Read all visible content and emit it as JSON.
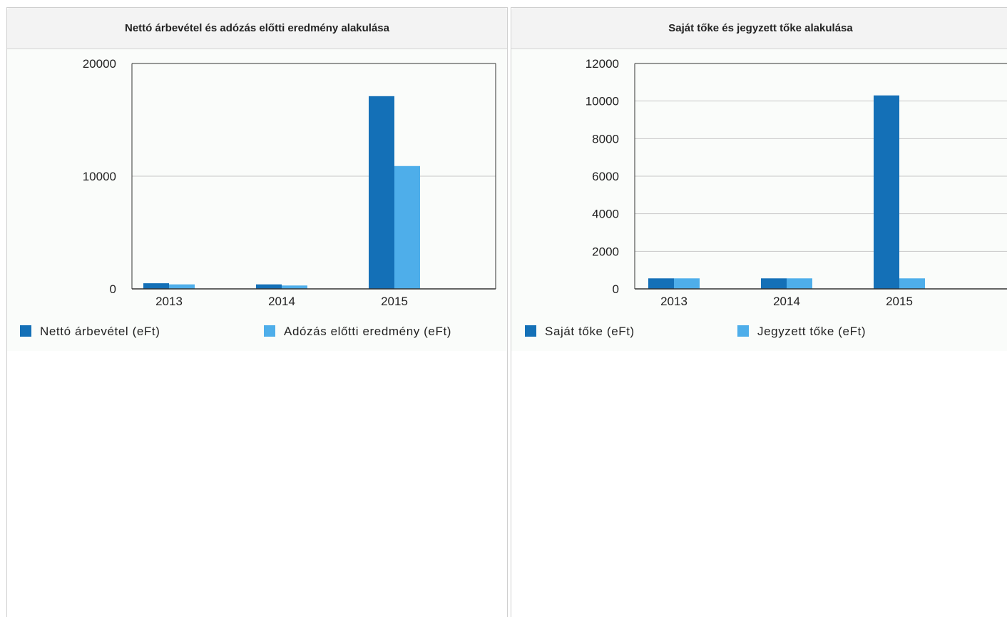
{
  "colors": {
    "series1": "#1470b7",
    "series2": "#4eaeea",
    "grid": "#c8c8c8"
  },
  "chart_data": [
    {
      "type": "bar",
      "title": "Nettó árbevétel és adózás előtti eredmény alakulása",
      "categories": [
        "2013",
        "2014",
        "2015"
      ],
      "series": [
        {
          "name": "Nettó árbevétel (eFt)",
          "values": [
            500,
            400,
            17100
          ]
        },
        {
          "name": "Adózás előtti eredmény (eFt)",
          "values": [
            400,
            300,
            10900
          ]
        }
      ],
      "ylim": [
        0,
        20000
      ],
      "yticks": [
        "0",
        "10000",
        "20000"
      ],
      "grid": true,
      "legend": "bottom"
    },
    {
      "type": "bar",
      "title": "Saját tőke és jegyzett tőke alakulása",
      "categories": [
        "2013",
        "2014",
        "2015"
      ],
      "series": [
        {
          "name": "Saját tőke (eFt)",
          "values": [
            560,
            560,
            10300
          ]
        },
        {
          "name": "Jegyzett tőke (eFt)",
          "values": [
            560,
            560,
            560
          ]
        }
      ],
      "ylim": [
        0,
        12000
      ],
      "yticks": [
        "0",
        "2000",
        "4000",
        "6000",
        "8000",
        "10000",
        "12000"
      ],
      "grid": true,
      "legend": "bottom"
    }
  ]
}
